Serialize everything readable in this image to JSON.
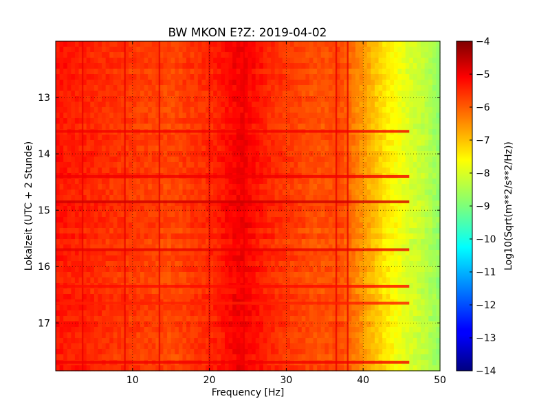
{
  "chart_data": {
    "type": "heatmap",
    "title": "BW MKON E?Z: 2019-04-02",
    "xlabel": "Frequency [Hz]",
    "ylabel": "Lokalzeit (UTC + 2 Stunde)",
    "xlim": [
      0,
      50
    ],
    "ylim": [
      17.85,
      12.0
    ],
    "x_ticks": [
      10,
      20,
      30,
      40,
      50
    ],
    "x_tick_labels": [
      "10",
      "20",
      "30",
      "40",
      "50"
    ],
    "y_ticks": [
      13,
      14,
      15,
      16,
      17
    ],
    "y_tick_labels": [
      "13",
      "14",
      "15",
      "16",
      "17"
    ],
    "grid": true,
    "colorbar": {
      "label": "Log10(Sqrt(m**2/s**2/Hz))",
      "range": [
        -14,
        -4
      ],
      "ticks": [
        -4,
        -5,
        -6,
        -7,
        -8,
        -9,
        -10,
        -11,
        -12,
        -13,
        -14
      ],
      "tick_labels": [
        "−4",
        "−5",
        "−6",
        "−7",
        "−8",
        "−9",
        "−10",
        "−11",
        "−12",
        "−13",
        "−14"
      ],
      "colormap": "jet"
    },
    "frequency_profile": [
      {
        "x": 0,
        "v": -5.3
      },
      {
        "x": 3,
        "v": -5.4
      },
      {
        "x": 8,
        "v": -5.6
      },
      {
        "x": 15,
        "v": -5.8
      },
      {
        "x": 20,
        "v": -5.5
      },
      {
        "x": 24,
        "v": -5.0
      },
      {
        "x": 28,
        "v": -5.5
      },
      {
        "x": 34,
        "v": -5.9
      },
      {
        "x": 37,
        "v": -5.8
      },
      {
        "x": 40,
        "v": -6.6
      },
      {
        "x": 43,
        "v": -7.4
      },
      {
        "x": 46,
        "v": -8.0
      },
      {
        "x": 48,
        "v": -8.3
      },
      {
        "x": 50,
        "v": -8.8
      }
    ],
    "vertical_lines_hz": [
      3.5,
      9.0,
      13.5,
      20.0,
      24.5,
      36.5,
      38.0
    ],
    "time_bands": [
      {
        "t": 13.6,
        "v": -5.0
      },
      {
        "t": 14.4,
        "v": -5.0
      },
      {
        "t": 14.85,
        "v": -4.7
      },
      {
        "t": 15.7,
        "v": -4.9
      },
      {
        "t": 16.35,
        "v": -5.2
      },
      {
        "t": 16.65,
        "v": -5.4
      },
      {
        "t": 17.7,
        "v": -5.0
      }
    ]
  }
}
